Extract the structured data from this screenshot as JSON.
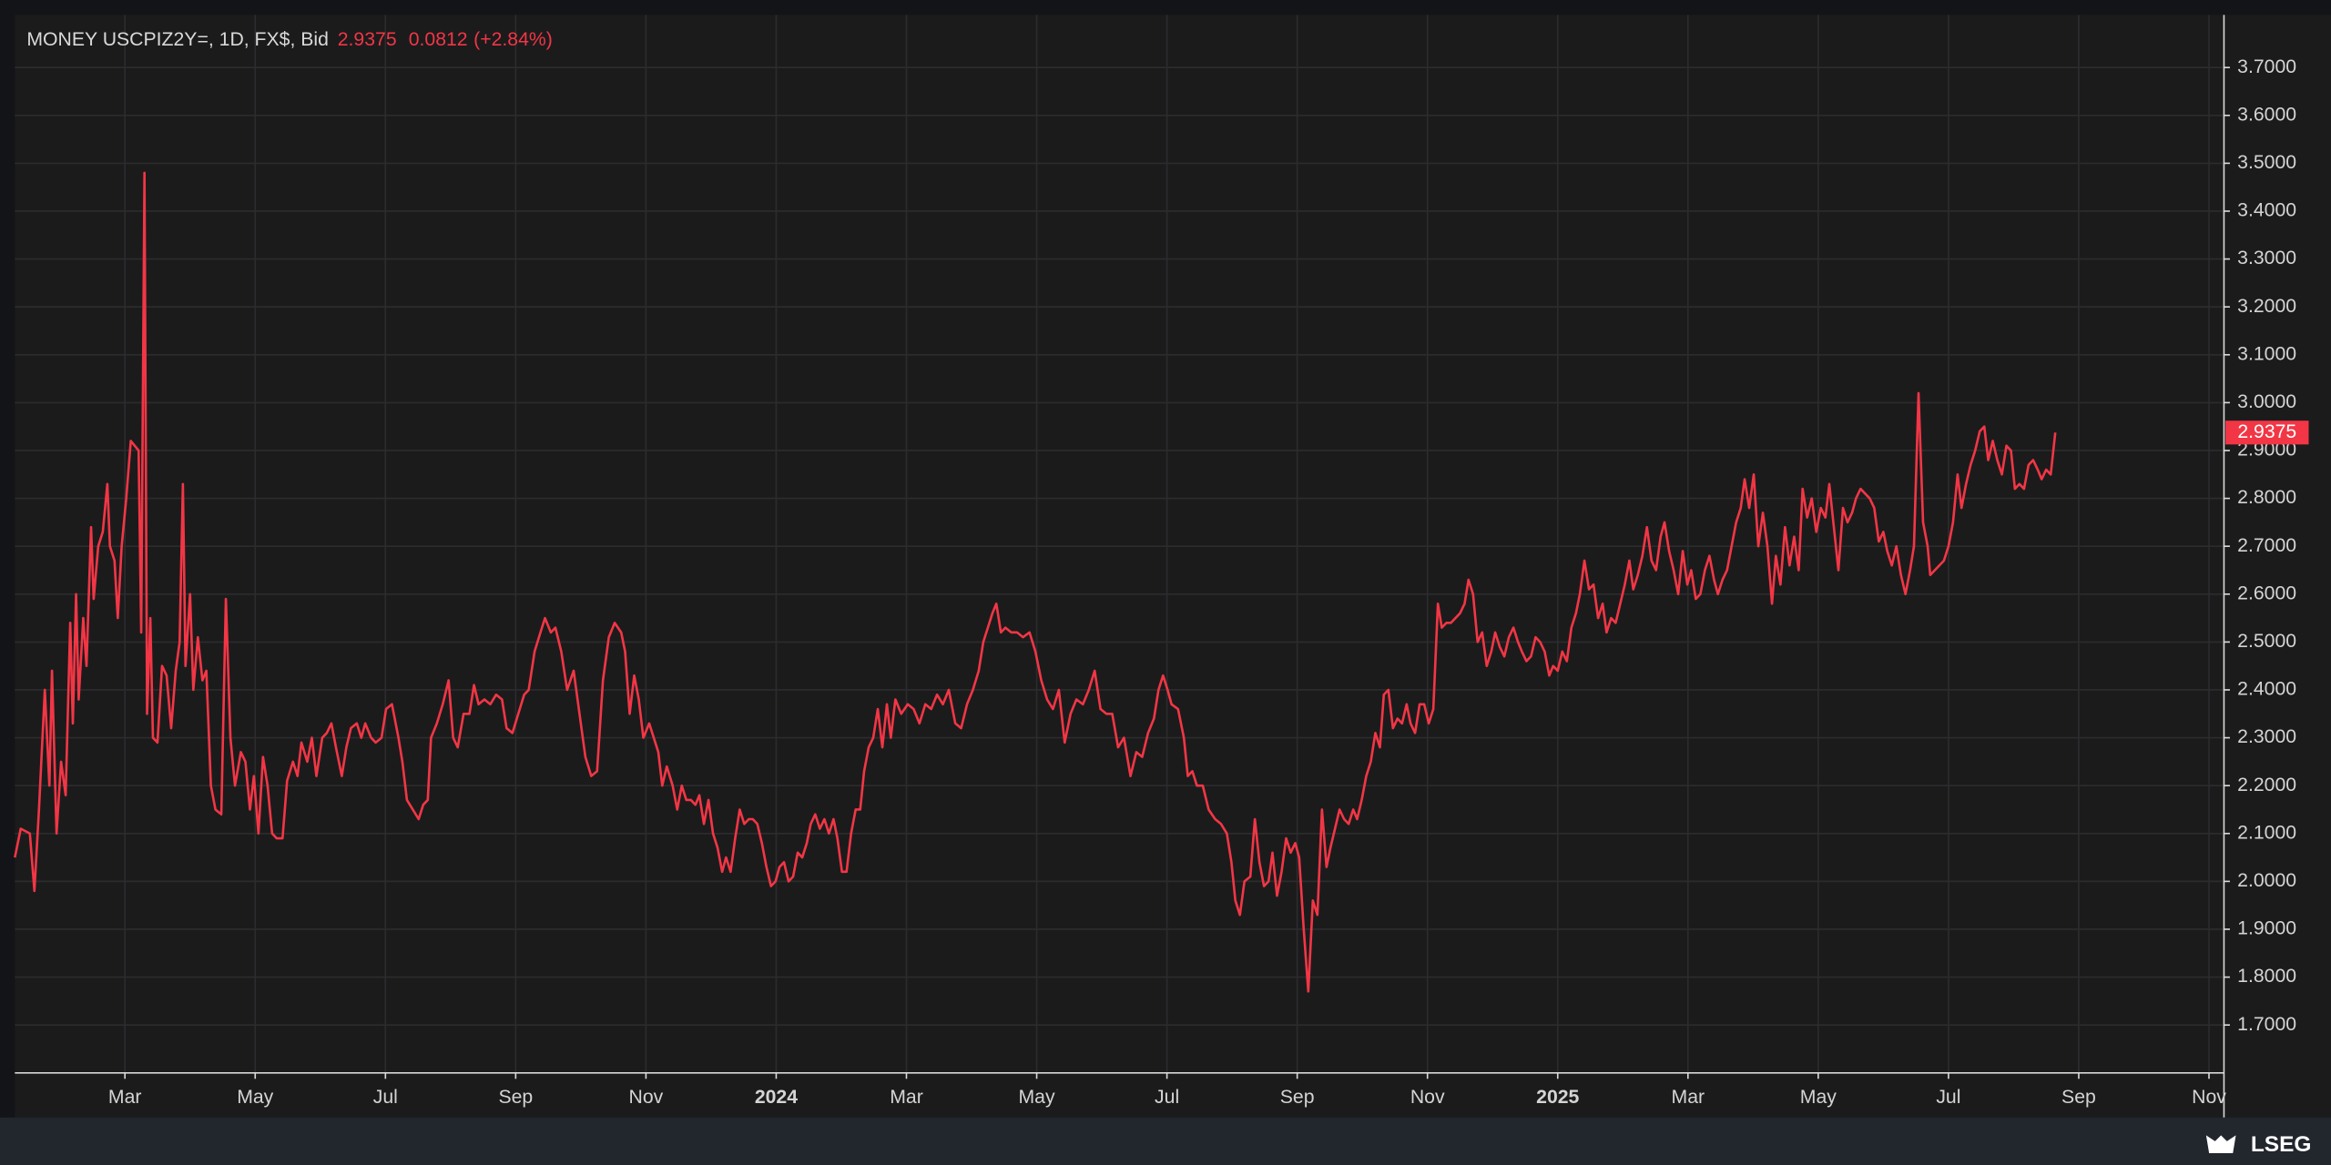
{
  "chart_data": {
    "type": "line",
    "title": "MONEY USCPIZ2Y=, 1D, FX$, Bid",
    "last": 2.9375,
    "change": 0.0812,
    "change_pct": "(+2.84%)",
    "color": "#f23645",
    "grid": true,
    "xlim": [
      0.31,
      34.23
    ],
    "ylim": [
      1.6,
      3.81
    ],
    "xticks": [
      {
        "value": 2,
        "label": "Mar"
      },
      {
        "value": 4,
        "label": "May"
      },
      {
        "value": 6,
        "label": "Jul"
      },
      {
        "value": 8,
        "label": "Sep"
      },
      {
        "value": 10,
        "label": "Nov"
      },
      {
        "value": 12,
        "label": "2024"
      },
      {
        "value": 14,
        "label": "Mar"
      },
      {
        "value": 16,
        "label": "May"
      },
      {
        "value": 18,
        "label": "Jul"
      },
      {
        "value": 20,
        "label": "Sep"
      },
      {
        "value": 22,
        "label": "Nov"
      },
      {
        "value": 24,
        "label": "2025"
      },
      {
        "value": 26,
        "label": "Mar"
      },
      {
        "value": 28,
        "label": "May"
      },
      {
        "value": 30,
        "label": "Jul"
      },
      {
        "value": 32,
        "label": "Sep"
      },
      {
        "value": 34,
        "label": "Nov"
      }
    ],
    "yticks": [
      {
        "value": 1.7,
        "label": "1.7000"
      },
      {
        "value": 1.8,
        "label": "1.8000"
      },
      {
        "value": 1.9,
        "label": "1.9000"
      },
      {
        "value": 2.0,
        "label": "2.0000"
      },
      {
        "value": 2.1,
        "label": "2.1000"
      },
      {
        "value": 2.2,
        "label": "2.2000"
      },
      {
        "value": 2.3,
        "label": "2.3000"
      },
      {
        "value": 2.4,
        "label": "2.4000"
      },
      {
        "value": 2.5,
        "label": "2.5000"
      },
      {
        "value": 2.6,
        "label": "2.6000"
      },
      {
        "value": 2.7,
        "label": "2.7000"
      },
      {
        "value": 2.8,
        "label": "2.8000"
      },
      {
        "value": 2.9,
        "label": "2.9000"
      },
      {
        "value": 3.0,
        "label": "3.0000"
      },
      {
        "value": 3.1,
        "label": "3.1000"
      },
      {
        "value": 3.2,
        "label": "3.2000"
      },
      {
        "value": 3.3,
        "label": "3.3000"
      },
      {
        "value": 3.4,
        "label": "3.4000"
      },
      {
        "value": 3.5,
        "label": "3.5000"
      },
      {
        "value": 3.6,
        "label": "3.6000"
      },
      {
        "value": 3.7,
        "label": "3.7000"
      }
    ],
    "x": [
      0.31,
      0.4,
      0.54,
      0.61,
      0.68,
      0.77,
      0.84,
      0.88,
      0.95,
      1.02,
      1.09,
      1.16,
      1.2,
      1.25,
      1.29,
      1.36,
      1.41,
      1.48,
      1.52,
      1.59,
      1.66,
      1.73,
      1.77,
      1.84,
      1.89,
      1.95,
      2.02,
      2.09,
      2.21,
      2.25,
      2.3,
      2.34,
      2.39,
      2.43,
      2.5,
      2.57,
      2.64,
      2.71,
      2.78,
      2.84,
      2.89,
      2.93,
      3.0,
      3.05,
      3.12,
      3.19,
      3.25,
      3.32,
      3.39,
      3.48,
      3.55,
      3.62,
      3.69,
      3.78,
      3.85,
      3.92,
      3.98,
      4.05,
      4.12,
      4.19,
      4.26,
      4.33,
      4.42,
      4.49,
      4.58,
      4.65,
      4.71,
      4.8,
      4.87,
      4.94,
      5.03,
      5.1,
      5.17,
      5.24,
      5.33,
      5.4,
      5.47,
      5.56,
      5.63,
      5.69,
      5.78,
      5.85,
      5.94,
      6.01,
      6.1,
      6.2,
      6.26,
      6.33,
      6.42,
      6.51,
      6.58,
      6.65,
      6.7,
      6.79,
      6.88,
      6.97,
      7.04,
      7.11,
      7.2,
      7.29,
      7.36,
      7.43,
      7.52,
      7.61,
      7.7,
      7.79,
      7.86,
      7.95,
      8.04,
      8.13,
      8.2,
      8.29,
      8.38,
      8.45,
      8.54,
      8.61,
      8.7,
      8.79,
      8.89,
      8.98,
      9.07,
      9.16,
      9.25,
      9.34,
      9.43,
      9.52,
      9.62,
      9.68,
      9.75,
      9.82,
      9.89,
      9.96,
      10.05,
      10.12,
      10.19,
      10.25,
      10.32,
      10.41,
      10.48,
      10.55,
      10.62,
      10.69,
      10.76,
      10.82,
      10.89,
      10.96,
      11.03,
      11.1,
      11.17,
      11.23,
      11.3,
      11.37,
      11.44,
      11.51,
      11.58,
      11.64,
      11.71,
      11.78,
      11.85,
      11.92,
      11.99,
      12.05,
      12.12,
      12.19,
      12.26,
      12.33,
      12.4,
      12.47,
      12.53,
      12.6,
      12.67,
      12.74,
      12.81,
      12.88,
      12.94,
      13.01,
      13.08,
      13.15,
      13.22,
      13.29,
      13.35,
      13.42,
      13.49,
      13.56,
      13.63,
      13.7,
      13.76,
      13.83,
      13.92,
      14.02,
      14.11,
      14.2,
      14.29,
      14.38,
      14.47,
      14.56,
      14.65,
      14.75,
      14.84,
      14.93,
      15.02,
      15.11,
      15.18,
      15.25,
      15.32,
      15.38,
      15.45,
      15.52,
      15.61,
      15.7,
      15.79,
      15.89,
      15.98,
      16.07,
      16.16,
      16.25,
      16.34,
      16.43,
      16.52,
      16.61,
      16.71,
      16.8,
      16.89,
      16.98,
      17.07,
      17.16,
      17.25,
      17.34,
      17.44,
      17.53,
      17.62,
      17.71,
      17.8,
      17.87,
      17.94,
      18.01,
      18.07,
      18.17,
      18.26,
      18.32,
      18.39,
      18.46,
      18.55,
      18.64,
      18.74,
      18.83,
      18.92,
      18.99,
      19.05,
      19.12,
      19.19,
      19.28,
      19.35,
      19.42,
      19.49,
      19.56,
      19.62,
      19.69,
      19.76,
      19.83,
      19.9,
      19.97,
      20.03,
      20.1,
      20.17,
      20.24,
      20.31,
      20.38,
      20.45,
      20.51,
      20.58,
      20.65,
      20.72,
      20.79,
      20.86,
      20.92,
      20.99,
      21.06,
      21.13,
      21.2,
      21.27,
      21.33,
      21.4,
      21.47,
      21.54,
      21.61,
      21.68,
      21.74,
      21.81,
      21.88,
      21.95,
      22.02,
      22.09,
      22.16,
      22.22,
      22.29,
      22.36,
      22.43,
      22.5,
      22.57,
      22.63,
      22.7,
      22.77,
      22.84,
      22.91,
      22.98,
      23.04,
      23.11,
      23.18,
      23.25,
      23.32,
      23.39,
      23.45,
      23.52,
      23.59,
      23.66,
      23.73,
      23.8,
      23.87,
      23.93,
      24.0,
      24.07,
      24.14,
      24.21,
      24.28,
      24.34,
      24.41,
      24.48,
      24.55,
      24.62,
      24.69,
      24.75,
      24.82,
      24.89,
      24.96,
      25.03,
      25.1,
      25.16,
      25.23,
      25.3,
      25.37,
      25.44,
      25.51,
      25.58,
      25.64,
      25.71,
      25.78,
      25.85,
      25.92,
      25.99,
      26.05,
      26.12,
      26.19,
      26.26,
      26.33,
      26.4,
      26.46,
      26.53,
      26.6,
      26.67,
      26.74,
      26.81,
      26.87,
      26.94,
      27.01,
      27.08,
      27.15,
      27.22,
      27.29,
      27.35,
      27.42,
      27.49,
      27.56,
      27.63,
      27.7,
      27.76,
      27.83,
      27.9,
      27.97,
      28.04,
      28.11,
      28.17,
      28.24,
      28.31,
      28.38,
      28.45,
      28.52,
      28.58,
      28.65,
      28.72,
      28.79,
      28.86,
      28.93,
      29.0,
      29.06,
      29.13,
      29.2,
      29.27,
      29.34,
      29.41,
      29.47,
      29.54,
      29.61,
      29.68,
      29.72,
      29.79,
      29.86,
      29.93,
      30.0,
      30.07,
      30.14,
      30.2,
      30.27,
      30.34,
      30.41,
      30.48,
      30.55,
      30.61,
      30.68,
      30.75,
      30.82,
      30.89,
      30.96,
      31.02,
      31.09,
      31.16,
      31.23,
      31.3,
      31.37,
      31.43,
      31.5,
      31.57,
      31.64
    ],
    "values": [
      2.05,
      2.11,
      2.1,
      1.98,
      2.15,
      2.4,
      2.2,
      2.44,
      2.1,
      2.25,
      2.18,
      2.54,
      2.33,
      2.6,
      2.38,
      2.55,
      2.45,
      2.74,
      2.59,
      2.7,
      2.73,
      2.83,
      2.7,
      2.67,
      2.55,
      2.7,
      2.8,
      2.92,
      2.9,
      2.52,
      3.48,
      2.35,
      2.55,
      2.3,
      2.29,
      2.45,
      2.43,
      2.32,
      2.44,
      2.5,
      2.83,
      2.45,
      2.6,
      2.4,
      2.51,
      2.42,
      2.44,
      2.2,
      2.15,
      2.14,
      2.59,
      2.3,
      2.2,
      2.27,
      2.25,
      2.15,
      2.22,
      2.1,
      2.26,
      2.2,
      2.1,
      2.09,
      2.09,
      2.21,
      2.25,
      2.22,
      2.29,
      2.25,
      2.3,
      2.22,
      2.3,
      2.31,
      2.33,
      2.28,
      2.22,
      2.28,
      2.32,
      2.33,
      2.3,
      2.33,
      2.3,
      2.29,
      2.3,
      2.36,
      2.37,
      2.3,
      2.25,
      2.17,
      2.15,
      2.13,
      2.16,
      2.17,
      2.3,
      2.33,
      2.37,
      2.42,
      2.3,
      2.28,
      2.35,
      2.35,
      2.41,
      2.37,
      2.38,
      2.37,
      2.39,
      2.38,
      2.32,
      2.31,
      2.35,
      2.39,
      2.4,
      2.48,
      2.52,
      2.55,
      2.52,
      2.53,
      2.48,
      2.4,
      2.44,
      2.35,
      2.26,
      2.22,
      2.23,
      2.42,
      2.51,
      2.54,
      2.52,
      2.48,
      2.35,
      2.43,
      2.38,
      2.3,
      2.33,
      2.3,
      2.27,
      2.2,
      2.24,
      2.2,
      2.15,
      2.2,
      2.17,
      2.17,
      2.16,
      2.18,
      2.12,
      2.17,
      2.1,
      2.07,
      2.02,
      2.05,
      2.02,
      2.09,
      2.15,
      2.12,
      2.13,
      2.13,
      2.12,
      2.08,
      2.03,
      1.99,
      2.0,
      2.03,
      2.04,
      2.0,
      2.01,
      2.06,
      2.05,
      2.08,
      2.12,
      2.14,
      2.11,
      2.13,
      2.1,
      2.13,
      2.09,
      2.02,
      2.02,
      2.1,
      2.15,
      2.15,
      2.23,
      2.28,
      2.3,
      2.36,
      2.28,
      2.37,
      2.3,
      2.38,
      2.35,
      2.37,
      2.36,
      2.33,
      2.37,
      2.36,
      2.39,
      2.37,
      2.4,
      2.33,
      2.32,
      2.37,
      2.4,
      2.44,
      2.5,
      2.53,
      2.56,
      2.58,
      2.52,
      2.53,
      2.52,
      2.52,
      2.51,
      2.52,
      2.48,
      2.42,
      2.38,
      2.36,
      2.4,
      2.29,
      2.35,
      2.38,
      2.37,
      2.4,
      2.44,
      2.36,
      2.35,
      2.35,
      2.28,
      2.3,
      2.22,
      2.27,
      2.26,
      2.31,
      2.34,
      2.4,
      2.43,
      2.4,
      2.37,
      2.36,
      2.3,
      2.22,
      2.23,
      2.2,
      2.2,
      2.15,
      2.13,
      2.12,
      2.1,
      2.04,
      1.96,
      1.93,
      2.0,
      2.01,
      2.13,
      2.04,
      1.99,
      2.0,
      2.06,
      1.97,
      2.02,
      2.09,
      2.06,
      2.08,
      2.05,
      1.9,
      1.77,
      1.96,
      1.93,
      2.15,
      2.03,
      2.07,
      2.11,
      2.15,
      2.13,
      2.12,
      2.15,
      2.13,
      2.17,
      2.22,
      2.25,
      2.31,
      2.28,
      2.39,
      2.4,
      2.32,
      2.34,
      2.33,
      2.37,
      2.33,
      2.31,
      2.37,
      2.37,
      2.33,
      2.36,
      2.58,
      2.53,
      2.54,
      2.54,
      2.55,
      2.56,
      2.58,
      2.63,
      2.6,
      2.5,
      2.52,
      2.45,
      2.48,
      2.52,
      2.49,
      2.47,
      2.51,
      2.53,
      2.5,
      2.48,
      2.46,
      2.47,
      2.51,
      2.5,
      2.48,
      2.43,
      2.45,
      2.44,
      2.48,
      2.46,
      2.53,
      2.56,
      2.6,
      2.67,
      2.61,
      2.62,
      2.55,
      2.58,
      2.52,
      2.55,
      2.54,
      2.58,
      2.62,
      2.67,
      2.61,
      2.64,
      2.68,
      2.74,
      2.67,
      2.65,
      2.72,
      2.75,
      2.69,
      2.65,
      2.6,
      2.69,
      2.62,
      2.65,
      2.59,
      2.6,
      2.65,
      2.68,
      2.63,
      2.6,
      2.63,
      2.65,
      2.7,
      2.75,
      2.78,
      2.84,
      2.78,
      2.85,
      2.7,
      2.77,
      2.7,
      2.58,
      2.68,
      2.62,
      2.74,
      2.66,
      2.72,
      2.65,
      2.82,
      2.76,
      2.8,
      2.73,
      2.78,
      2.76,
      2.83,
      2.74,
      2.65,
      2.78,
      2.75,
      2.77,
      2.8,
      2.82,
      2.81,
      2.8,
      2.78,
      2.71,
      2.73,
      2.69,
      2.66,
      2.7,
      2.64,
      2.6,
      2.65,
      2.7,
      3.02,
      2.75,
      2.7,
      2.64,
      2.65,
      2.66,
      2.67,
      2.7,
      2.75,
      2.85,
      2.78,
      2.83,
      2.87,
      2.9,
      2.94,
      2.95,
      2.88,
      2.92,
      2.88,
      2.85,
      2.91,
      2.9,
      2.82,
      2.83,
      2.82,
      2.87,
      2.88,
      2.86,
      2.84,
      2.86,
      2.85,
      2.9375
    ]
  },
  "brand": "LSEG"
}
